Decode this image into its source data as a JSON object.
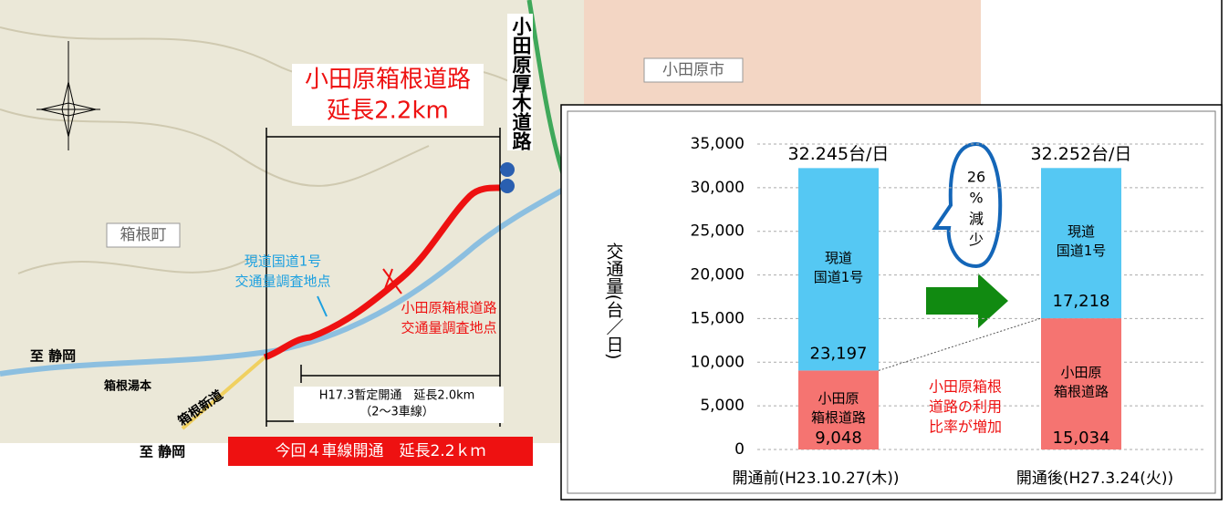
{
  "map": {
    "road_title": "小田原箱根道路",
    "road_length": "延長2.2km",
    "atsugi_road": "小田原厚木道路",
    "city": "小田原市",
    "town": "箱根町",
    "current_point_lines": [
      "現道国道1号",
      "交通量調査地点"
    ],
    "new_point_lines": [
      "小田原箱根道路",
      "交通量調査地点"
    ],
    "to_shizuoka_upper": "至 静岡",
    "to_shizuoka_lower": "至 静岡",
    "yumoto": "箱根湯本",
    "shindo": "箱根新道",
    "provisional_lines": [
      "H17.3暫定開通　延長2.0km",
      "（2～3車線）"
    ],
    "opening_banner": "今回４車線開通　延長2.2ｋｍ"
  },
  "chart_data": {
    "type": "stacked-bar",
    "y_label": "交通量(台／日)",
    "categories": [
      "開通前(H23.10.27(木))",
      "開通後(H27.3.24(火))"
    ],
    "series": [
      {
        "label_lines": [
          "小田原",
          "箱根道路"
        ],
        "color": "#f57471",
        "values": [
          9048,
          15034
        ],
        "value_labels": [
          "9,048",
          "15,034"
        ]
      },
      {
        "label_lines": [
          "現道",
          "国道1号"
        ],
        "color": "#55c8f3",
        "values": [
          23197,
          17218
        ],
        "value_labels": [
          "23,197",
          "17,218"
        ]
      }
    ],
    "totals": [
      32245,
      32252
    ],
    "total_labels": [
      "32.245台/日",
      "32.252台/日"
    ],
    "callout_lines": [
      "26",
      "%",
      "減",
      "少"
    ],
    "annotation_lines": [
      "小田原箱根",
      "道路の利用",
      "比率が増加"
    ],
    "ylim": [
      0,
      35000
    ],
    "yticks": [
      0,
      {
        "value": 5000,
        "label": "5,000"
      },
      {
        "value": 10000,
        "label": "10,000"
      },
      {
        "value": 15000,
        "label": "15,000"
      },
      {
        "value": 20000,
        "label": "20,000"
      },
      {
        "value": 25000,
        "label": "25,000"
      },
      {
        "value": 30000,
        "label": "30,000"
      },
      {
        "value": 35000,
        "label": "35,000"
      }
    ],
    "grid": true
  }
}
